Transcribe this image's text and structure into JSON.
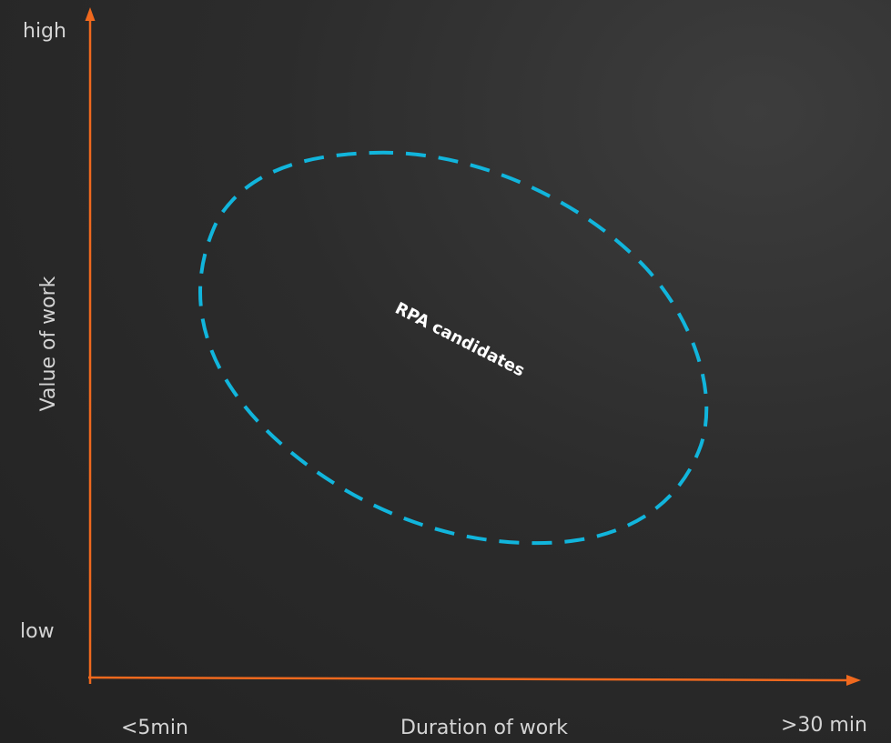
{
  "axes": {
    "y": {
      "title": "Value of work",
      "high_label": "high",
      "low_label": "low"
    },
    "x": {
      "title": "Duration of work",
      "min_label": "<5min",
      "max_label": ">30 min"
    }
  },
  "region": {
    "label": "RPA candidates"
  },
  "colors": {
    "axis": "#f0691e",
    "region_outline": "#11b5dc",
    "text": "#d4d4d4",
    "region_text": "#ffffff",
    "background": "#2c2c2c"
  }
}
